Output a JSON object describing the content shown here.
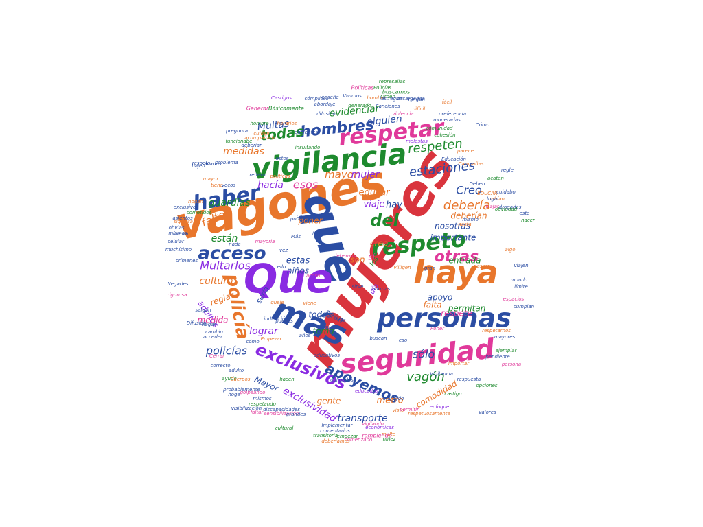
{
  "colors": {
    "green": "#1e8a2e",
    "blue": "#2b4da3",
    "orange": "#e8762c",
    "magenta": "#e0399a",
    "purple": "#8a2be2",
    "red": "#d9343d"
  },
  "words": [
    {
      "text": "mujeres",
      "color": "red"
    },
    {
      "text": "vagones",
      "color": "orange"
    },
    {
      "text": "que",
      "color": "blue"
    },
    {
      "text": "Que",
      "color": "purple"
    },
    {
      "text": "vigilancia",
      "color": "green"
    },
    {
      "text": "seguridad",
      "color": "magenta"
    },
    {
      "text": "haya",
      "color": "orange"
    },
    {
      "text": "personas",
      "color": "blue"
    },
    {
      "text": "más",
      "color": "blue"
    },
    {
      "text": "respetar",
      "color": "magenta"
    },
    {
      "text": "respeto",
      "color": "green"
    },
    {
      "text": "haber",
      "color": "blue"
    },
    {
      "text": "policía",
      "color": "orange"
    },
    {
      "text": "exclusivos",
      "color": "purple"
    },
    {
      "text": "hombres",
      "color": "blue"
    },
    {
      "text": "del",
      "color": "green"
    },
    {
      "text": "acceso",
      "color": "blue"
    },
    {
      "text": "estaciones",
      "color": "blue"
    },
    {
      "text": "respeten",
      "color": "green"
    },
    {
      "text": "todas",
      "color": "green"
    },
    {
      "text": "apoyemos",
      "color": "blue"
    },
    {
      "text": "otras",
      "color": "magenta"
    },
    {
      "text": "debería",
      "color": "orange"
    },
    {
      "text": "Creo",
      "color": "blue"
    },
    {
      "text": "vagón",
      "color": "green"
    },
    {
      "text": "sólo",
      "color": "blue"
    },
    {
      "text": "policías",
      "color": "blue"
    },
    {
      "text": "Multas",
      "color": "blue"
    },
    {
      "text": "esos",
      "color": "magenta"
    },
    {
      "text": "mayor",
      "color": "orange"
    },
    {
      "text": "hacía",
      "color": "purple"
    },
    {
      "text": "guardias",
      "color": "green"
    },
    {
      "text": "faltas",
      "color": "orange"
    },
    {
      "text": "están",
      "color": "green"
    },
    {
      "text": "medidas",
      "color": "orange"
    },
    {
      "text": "evidenciar",
      "color": "green"
    },
    {
      "text": "alguien",
      "color": "blue"
    },
    {
      "text": "mujer",
      "color": "purple"
    },
    {
      "text": "educar",
      "color": "orange"
    },
    {
      "text": "viaje",
      "color": "purple"
    },
    {
      "text": "hay",
      "color": "blue"
    },
    {
      "text": "deberían",
      "color": "orange"
    },
    {
      "text": "nosotras",
      "color": "blue"
    },
    {
      "text": "poner",
      "color": "orange"
    },
    {
      "text": "importante",
      "color": "blue"
    },
    {
      "text": "entrada",
      "color": "green"
    },
    {
      "text": "apoyo",
      "color": "blue"
    },
    {
      "text": "falta",
      "color": "orange"
    },
    {
      "text": "respete",
      "color": "magenta"
    },
    {
      "text": "permitan",
      "color": "green"
    },
    {
      "text": "Multarlos",
      "color": "purple"
    },
    {
      "text": "cultura",
      "color": "orange"
    },
    {
      "text": "estas",
      "color": "blue"
    },
    {
      "text": "niños",
      "color": "blue"
    },
    {
      "text": "son",
      "color": "orange"
    },
    {
      "text": "todos",
      "color": "blue"
    },
    {
      "text": "sean",
      "color": "blue"
    },
    {
      "text": "tema",
      "color": "green"
    },
    {
      "text": "lograr",
      "color": "purple"
    },
    {
      "text": "adultos",
      "color": "purple"
    },
    {
      "text": "reglas",
      "color": "orange"
    },
    {
      "text": "medida",
      "color": "magenta"
    },
    {
      "text": "Mayor",
      "color": "blue"
    },
    {
      "text": "exclusividad",
      "color": "purple"
    },
    {
      "text": "gente",
      "color": "orange"
    },
    {
      "text": "metro",
      "color": "orange"
    },
    {
      "text": "comodidad",
      "color": "orange"
    },
    {
      "text": "transporte",
      "color": "blue"
    },
    {
      "text": "creo",
      "color": "orange"
    },
    {
      "text": "sería",
      "color": "blue"
    },
    {
      "text": "día",
      "color": "purple"
    },
    {
      "text": "sí",
      "color": "magenta"
    },
    {
      "text": "los",
      "color": "green"
    },
    {
      "text": "Generar",
      "color": "magenta"
    },
    {
      "text": "Básicamente",
      "color": "green"
    },
    {
      "text": "abordaje",
      "color": "blue"
    },
    {
      "text": "difusión",
      "color": "blue"
    },
    {
      "text": "generado",
      "color": "green"
    },
    {
      "text": "Sanciones",
      "color": "blue"
    },
    {
      "text": "Orden",
      "color": "green"
    },
    {
      "text": "violencia",
      "color": "magenta"
    },
    {
      "text": "buscamos",
      "color": "green"
    },
    {
      "text": "Castigos",
      "color": "purple"
    },
    {
      "text": "cómplices",
      "color": "blue"
    },
    {
      "text": "hombre",
      "color": "orange"
    },
    {
      "text": "encargadas",
      "color": "blue"
    },
    {
      "text": "Políticas",
      "color": "magenta"
    },
    {
      "text": "Policías",
      "color": "green"
    },
    {
      "text": "represalias",
      "color": "green"
    },
    {
      "text": "monetarias",
      "color": "blue"
    },
    {
      "text": "eficientes",
      "color": "blue"
    },
    {
      "text": "insultando",
      "color": "green"
    },
    {
      "text": "molestas",
      "color": "purple"
    },
    {
      "text": "cohesión",
      "color": "green"
    },
    {
      "text": "parece",
      "color": "orange"
    },
    {
      "text": "Educación",
      "color": "blue"
    },
    {
      "text": "Campañas",
      "color": "orange"
    },
    {
      "text": "Deben",
      "color": "blue"
    },
    {
      "text": "EDUCAR",
      "color": "orange"
    },
    {
      "text": "drogadas",
      "color": "blue"
    },
    {
      "text": "habían",
      "color": "orange"
    },
    {
      "text": "cuidabo",
      "color": "blue"
    },
    {
      "text": "acaten",
      "color": "green"
    },
    {
      "text": "regle",
      "color": "blue"
    },
    {
      "text": "este",
      "color": "blue"
    },
    {
      "text": "hacer",
      "color": "green"
    },
    {
      "text": "algo",
      "color": "orange"
    },
    {
      "text": "viajen",
      "color": "blue"
    },
    {
      "text": "mundo",
      "color": "blue"
    },
    {
      "text": "límite",
      "color": "blue"
    },
    {
      "text": "cumplan",
      "color": "blue"
    },
    {
      "text": "espacios",
      "color": "magenta"
    },
    {
      "text": "respetarnos",
      "color": "orange"
    },
    {
      "text": "mayores",
      "color": "blue"
    },
    {
      "text": "ejemplar",
      "color": "green"
    },
    {
      "text": "pendiente",
      "color": "blue"
    },
    {
      "text": "persona",
      "color": "magenta"
    },
    {
      "text": "opciones",
      "color": "green"
    },
    {
      "text": "respuesta",
      "color": "blue"
    },
    {
      "text": "Vigilancia",
      "color": "blue"
    },
    {
      "text": "educados",
      "color": "purple"
    },
    {
      "text": "marcado",
      "color": "blue"
    },
    {
      "text": "visto",
      "color": "orange"
    },
    {
      "text": "permitir",
      "color": "magenta"
    },
    {
      "text": "respetuosamente",
      "color": "orange"
    },
    {
      "text": "importar",
      "color": "orange"
    },
    {
      "text": "valores",
      "color": "blue"
    },
    {
      "text": "castigo",
      "color": "green"
    },
    {
      "text": "enfoque",
      "color": "purple"
    },
    {
      "text": "multe",
      "color": "orange"
    },
    {
      "text": "económicas",
      "color": "purple"
    },
    {
      "text": "rompiendo",
      "color": "magenta"
    },
    {
      "text": "niñez",
      "color": "green"
    },
    {
      "text": "vigilando",
      "color": "magenta"
    },
    {
      "text": "Implementar",
      "color": "blue"
    },
    {
      "text": "comentarios",
      "color": "blue"
    },
    {
      "text": "transitoria",
      "color": "green"
    },
    {
      "text": "empezar",
      "color": "green"
    },
    {
      "text": "comenzabo",
      "color": "magenta"
    },
    {
      "text": "deberíamos",
      "color": "orange"
    },
    {
      "text": "cultural",
      "color": "green"
    },
    {
      "text": "sensibilización",
      "color": "magenta"
    },
    {
      "text": "grandes",
      "color": "blue"
    },
    {
      "text": "discapacidades",
      "color": "blue"
    },
    {
      "text": "faltar",
      "color": "magenta"
    },
    {
      "text": "visibilización",
      "color": "blue"
    },
    {
      "text": "mismos",
      "color": "blue"
    },
    {
      "text": "respetando",
      "color": "green"
    },
    {
      "text": "golpeando",
      "color": "magenta"
    },
    {
      "text": "hoge",
      "color": "blue"
    },
    {
      "text": "probablemente",
      "color": "blue"
    },
    {
      "text": "ayude",
      "color": "green"
    },
    {
      "text": "Cuerpos",
      "color": "orange"
    },
    {
      "text": "adulto",
      "color": "blue"
    },
    {
      "text": "correcto",
      "color": "blue"
    },
    {
      "text": "Cerrar",
      "color": "magenta"
    },
    {
      "text": "educativos",
      "color": "blue"
    },
    {
      "text": "cómo",
      "color": "blue"
    },
    {
      "text": "Empezar",
      "color": "orange"
    },
    {
      "text": "buscan",
      "color": "blue"
    },
    {
      "text": "acceder",
      "color": "blue"
    },
    {
      "text": "cambio",
      "color": "blue"
    },
    {
      "text": "hagan",
      "color": "blue"
    },
    {
      "text": "Difusión",
      "color": "blue"
    },
    {
      "text": "salgan",
      "color": "blue"
    },
    {
      "text": "rigurosa",
      "color": "magenta"
    },
    {
      "text": "Negarles",
      "color": "blue"
    },
    {
      "text": "viene",
      "color": "orange"
    },
    {
      "text": "queje",
      "color": "orange"
    },
    {
      "text": "indicación",
      "color": "blue"
    },
    {
      "text": "puedes",
      "color": "blue"
    },
    {
      "text": "nada",
      "color": "blue"
    },
    {
      "text": "mayoría",
      "color": "magenta"
    },
    {
      "text": "fueran",
      "color": "blue"
    },
    {
      "text": "obvias",
      "color": "blue"
    },
    {
      "text": "siquiera",
      "color": "orange"
    },
    {
      "text": "mismas",
      "color": "blue"
    },
    {
      "text": "celular",
      "color": "blue"
    },
    {
      "text": "crímenes",
      "color": "blue"
    },
    {
      "text": "muchísimo",
      "color": "blue"
    },
    {
      "text": "asientos",
      "color": "blue"
    },
    {
      "text": "hogan",
      "color": "orange"
    },
    {
      "text": "cometidos",
      "color": "green"
    },
    {
      "text": "exclusivo",
      "color": "blue"
    },
    {
      "text": "políticas",
      "color": "orange"
    },
    {
      "text": "reitero",
      "color": "blue"
    },
    {
      "text": "vecos",
      "color": "blue"
    },
    {
      "text": "respeto",
      "color": "blue"
    },
    {
      "text": "mayor",
      "color": "orange"
    },
    {
      "text": "tiene",
      "color": "orange"
    },
    {
      "text": "sacarlos",
      "color": "blue"
    },
    {
      "text": "bajen",
      "color": "blue"
    },
    {
      "text": "problema",
      "color": "blue"
    },
    {
      "text": "obviedad",
      "color": "green"
    },
    {
      "text": "comunidad",
      "color": "green"
    },
    {
      "text": "preferencia",
      "color": "blue"
    },
    {
      "text": "Cómo",
      "color": "blue"
    },
    {
      "text": "ningún",
      "color": "blue"
    },
    {
      "text": "fácil",
      "color": "orange"
    },
    {
      "text": "difícil",
      "color": "orange"
    },
    {
      "text": "las.reglas",
      "color": "blue"
    },
    {
      "text": "enseñe",
      "color": "blue"
    },
    {
      "text": "Vivimos",
      "color": "blue"
    },
    {
      "text": "hombre",
      "color": "green"
    },
    {
      "text": "horarios",
      "color": "orange"
    },
    {
      "text": "acompañada",
      "color": "orange"
    },
    {
      "text": "funcionabe",
      "color": "green"
    },
    {
      "text": "laterales",
      "color": "blue"
    },
    {
      "text": "podamos",
      "color": "blue"
    },
    {
      "text": "deberían",
      "color": "blue"
    },
    {
      "text": "pregunta",
      "color": "blue"
    },
    {
      "text": "cuiden",
      "color": "orange"
    },
    {
      "text": "estos",
      "color": "blue"
    },
    {
      "text": "debemos",
      "color": "magenta"
    },
    {
      "text": "mismo",
      "color": "blue"
    },
    {
      "text": "hasta",
      "color": "orange"
    },
    {
      "text": "viajar",
      "color": "magenta"
    },
    {
      "text": "lugar",
      "color": "blue"
    },
    {
      "text": "Poner",
      "color": "magenta"
    },
    {
      "text": "eso",
      "color": "blue"
    },
    {
      "text": "hacen",
      "color": "green"
    },
    {
      "text": "obligados",
      "color": "blue"
    },
    {
      "text": "pasare",
      "color": "orange"
    },
    {
      "text": "gran",
      "color": "blue"
    },
    {
      "text": "villigen",
      "color": "orange"
    },
    {
      "text": "normas",
      "color": "blue"
    },
    {
      "text": "resuelto",
      "color": "blue"
    },
    {
      "text": "años",
      "color": "blue"
    },
    {
      "text": "acoso",
      "color": "magenta"
    },
    {
      "text": "voz",
      "color": "blue"
    },
    {
      "text": "ello",
      "color": "blue"
    },
    {
      "text": "vez",
      "color": "blue"
    },
    {
      "text": "Más",
      "color": "blue"
    },
    {
      "text": "caso",
      "color": "blue"
    },
    {
      "text": "sirve",
      "color": "blue"
    },
    {
      "text": "filtro",
      "color": "orange"
    },
    {
      "text": "Ningún",
      "color": "blue"
    },
    {
      "text": "tan",
      "color": "blue"
    },
    {
      "text": "paz",
      "color": "orange"
    }
  ]
}
